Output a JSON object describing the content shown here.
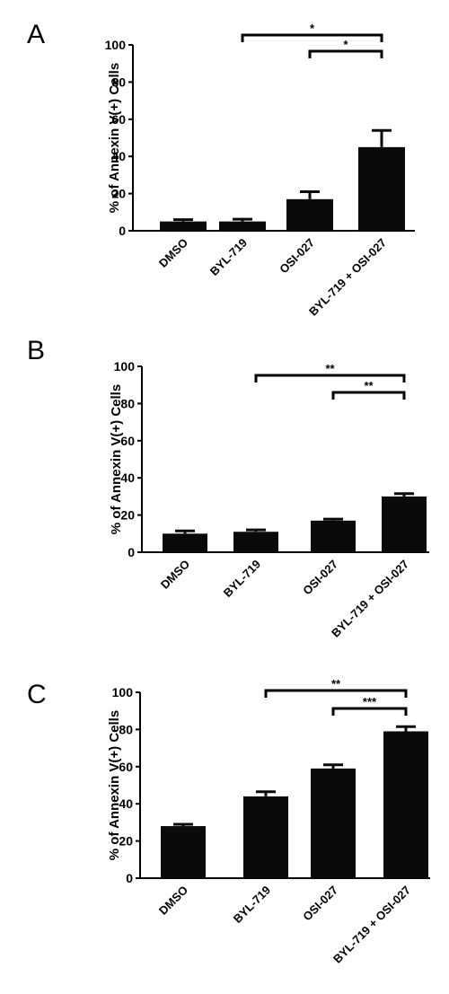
{
  "chart_data": [
    {
      "panel": "A",
      "type": "bar",
      "categories": [
        "DMSO",
        "BYL-719",
        "OSI-027",
        "BYL-719 + OSI-027"
      ],
      "values": [
        5,
        5,
        17,
        45
      ],
      "errors": [
        1,
        1.2,
        4,
        9
      ],
      "ylabel": "% of Annexin V(+) Cells",
      "ylim": [
        0,
        100
      ],
      "yticks": [
        "0",
        "20",
        "40",
        "60",
        "80",
        "100"
      ],
      "comparisons": [
        {
          "from": "BYL-719",
          "to": "BYL-719 + OSI-027",
          "label": "*"
        },
        {
          "from": "OSI-027",
          "to": "BYL-719 + OSI-027",
          "label": "*"
        }
      ]
    },
    {
      "panel": "B",
      "type": "bar",
      "categories": [
        "DMSO",
        "BYL-719",
        "OSI-027",
        "BYL-719 + OSI-027"
      ],
      "values": [
        10,
        11,
        17,
        30
      ],
      "errors": [
        1.5,
        1,
        0.8,
        1.5
      ],
      "ylabel": "% of Annexin V(+) Cells",
      "ylim": [
        0,
        100
      ],
      "yticks": [
        "0",
        "20",
        "40",
        "60",
        "80",
        "100"
      ],
      "comparisons": [
        {
          "from": "BYL-719",
          "to": "BYL-719 + OSI-027",
          "label": "**"
        },
        {
          "from": "OSI-027",
          "to": "BYL-719 + OSI-027",
          "label": "**"
        }
      ]
    },
    {
      "panel": "C",
      "type": "bar",
      "categories": [
        "DMSO",
        "BYL-719",
        "OSI-027",
        "BYL-719 + OSI-027"
      ],
      "values": [
        28,
        44,
        59,
        79
      ],
      "errors": [
        1,
        2.5,
        2,
        2.5
      ],
      "ylabel": "% of Annexin V(+) Cells",
      "ylim": [
        0,
        100
      ],
      "yticks": [
        "0",
        "20",
        "40",
        "60",
        "80",
        "100"
      ],
      "comparisons": [
        {
          "from": "BYL-719",
          "to": "BYL-719 + OSI-027",
          "label": "**"
        },
        {
          "from": "OSI-027",
          "to": "BYL-719 + OSI-027",
          "label": "***"
        }
      ]
    }
  ]
}
